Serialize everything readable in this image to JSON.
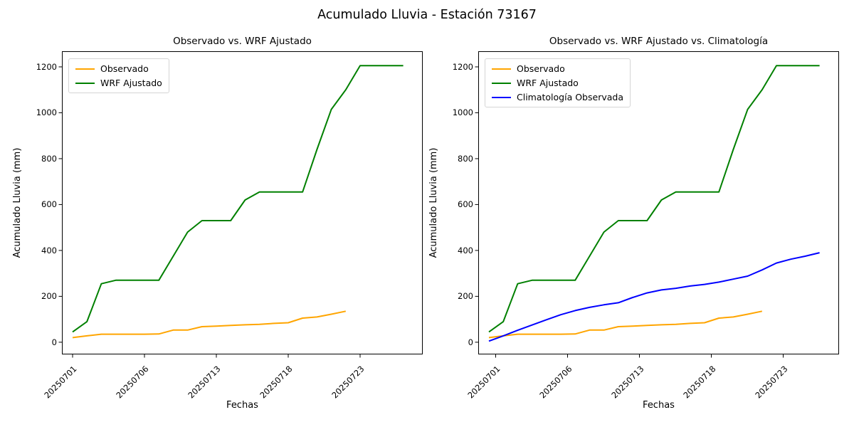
{
  "figure_title": "Acumulado Lluvia - Estación 73167",
  "axes_common": {
    "xlabel": "Fechas",
    "ylabel": "Acumulado Lluvia (mm)",
    "yticks": [
      0,
      200,
      400,
      600,
      800,
      1000,
      1200
    ],
    "ylim": [
      -50,
      1265
    ],
    "xtick_labels": [
      "20250701",
      "20250706",
      "20250713",
      "20250718",
      "20250723"
    ],
    "xtick_indices": [
      0,
      5,
      10,
      15,
      20
    ],
    "n_points": 24,
    "grid": false
  },
  "chart_data": [
    {
      "type": "line",
      "title": "Observado vs. WRF Ajustado",
      "legend_position": "upper left",
      "series": [
        {
          "name": "Observado",
          "color": "#FFA500",
          "values": [
            20,
            28,
            35,
            35,
            35,
            35,
            36,
            53,
            53,
            68,
            70,
            73,
            76,
            78,
            82,
            85,
            105,
            110,
            122,
            135
          ]
        },
        {
          "name": "WRF Ajustado",
          "color": "#008000",
          "values": [
            45,
            90,
            255,
            270,
            270,
            270,
            270,
            375,
            480,
            530,
            530,
            530,
            620,
            655,
            655,
            655,
            655,
            840,
            1015,
            1100,
            1205,
            1205,
            1205,
            1205
          ]
        }
      ]
    },
    {
      "type": "line",
      "title": "Observado vs. WRF Ajustado vs. Climatología",
      "legend_position": "upper left",
      "series": [
        {
          "name": "Observado",
          "color": "#FFA500",
          "values": [
            20,
            28,
            35,
            35,
            35,
            35,
            36,
            53,
            53,
            68,
            70,
            73,
            76,
            78,
            82,
            85,
            105,
            110,
            122,
            135
          ]
        },
        {
          "name": "WRF Ajustado",
          "color": "#008000",
          "values": [
            45,
            90,
            255,
            270,
            270,
            270,
            270,
            375,
            480,
            530,
            530,
            530,
            620,
            655,
            655,
            655,
            655,
            840,
            1015,
            1100,
            1205,
            1205,
            1205,
            1205
          ]
        },
        {
          "name": "Climatología Observada",
          "color": "#0000FF",
          "values": [
            5,
            28,
            52,
            75,
            98,
            120,
            138,
            152,
            163,
            172,
            195,
            215,
            228,
            235,
            245,
            252,
            262,
            275,
            288,
            315,
            345,
            362,
            375,
            390
          ]
        }
      ]
    }
  ]
}
